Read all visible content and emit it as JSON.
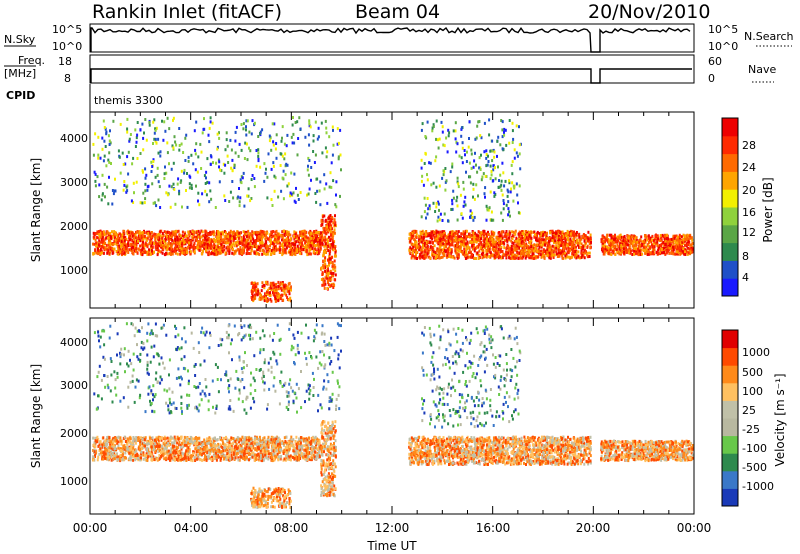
{
  "header": {
    "station": "Rankin Inlet (fitACF)",
    "beam": "Beam 04",
    "date": "20/Nov/2010"
  },
  "status_panels": {
    "nsky_label": "N.Sky",
    "nsky_ticks": [
      "10^5",
      "10^0"
    ],
    "nsearch_label": "N.Search",
    "freq_label": "Freq.",
    "freq_unit": "[MHz]",
    "freq_ticks": [
      "18",
      "8"
    ],
    "nave_label": "Nave",
    "nave_ticks": [
      "60",
      "0"
    ],
    "cpid_label": "CPID",
    "cpid_value": "themis 3300"
  },
  "colors": {
    "power_scale": [
      "#1a1aff",
      "#1f50c8",
      "#2e8a4e",
      "#5aa646",
      "#8fd23c",
      "#f2f000",
      "#ffa500",
      "#ff6a00",
      "#ff2a00",
      "#ee0000"
    ],
    "velocity_scale": [
      "#e00000",
      "#ff4a00",
      "#ff8a1a",
      "#ffc060",
      "#c0c0a8",
      "#b8b8a0",
      "#68c84a",
      "#2e8a4e",
      "#3a78c8",
      "#1a3ab8"
    ],
    "trace": "#000000"
  },
  "chart_data": [
    {
      "type": "heatmap",
      "name": "power-panel",
      "xlabel": "",
      "ylabel": "Slant Range [km]",
      "x_ticks": [
        "00:00",
        "04:00",
        "08:00",
        "12:00",
        "16:00",
        "20:00",
        "00:00"
      ],
      "y_ticks": [
        "1000",
        "2000",
        "3000",
        "4000"
      ],
      "colorbar_label": "Power [dB]",
      "colorbar_ticks": [
        "4",
        "8",
        "12",
        "16",
        "20",
        "24",
        "28"
      ]
    },
    {
      "type": "heatmap",
      "name": "velocity-panel",
      "xlabel": "Time UT",
      "ylabel": "Slant Range [km]",
      "x_ticks": [
        "00:00",
        "04:00",
        "08:00",
        "12:00",
        "16:00",
        "20:00",
        "00:00"
      ],
      "y_ticks": [
        "1000",
        "2000",
        "3000",
        "4000"
      ],
      "colorbar_label": "Velocity [m s⁻¹]",
      "colorbar_ticks": [
        "1000",
        "500",
        "100",
        "25",
        "-25",
        "-100",
        "-500",
        "-1000"
      ]
    }
  ]
}
